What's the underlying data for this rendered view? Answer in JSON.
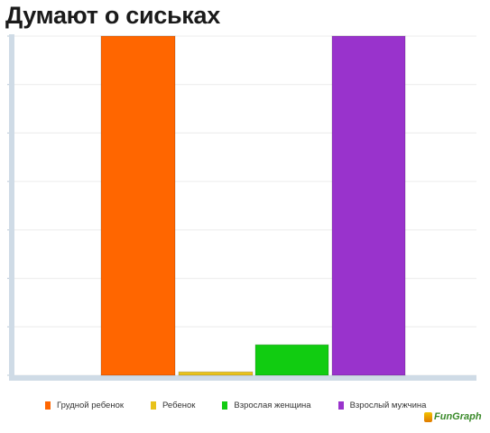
{
  "title": "Думают о сиськах",
  "colors": {
    "orange": "#ff6600",
    "yellow": "#e8c21a",
    "green": "#11cc11",
    "purple": "#9933cc",
    "axis": "#cfdbe6",
    "grid": "#ececec"
  },
  "logo_text": "FunGraph",
  "chart_data": {
    "type": "bar",
    "title": "Думают о сиськах",
    "categories": [
      "Грудной ребенок",
      "Ребенок",
      "Взрослая женщина",
      "Взрослый мужчина"
    ],
    "values": [
      100,
      1,
      9,
      100
    ],
    "colors": [
      "#ff6600",
      "#e8c21a",
      "#11cc11",
      "#9933cc"
    ],
    "ylim": [
      0,
      100
    ],
    "gridlines": 7,
    "grid": true,
    "legend": "bottom"
  }
}
